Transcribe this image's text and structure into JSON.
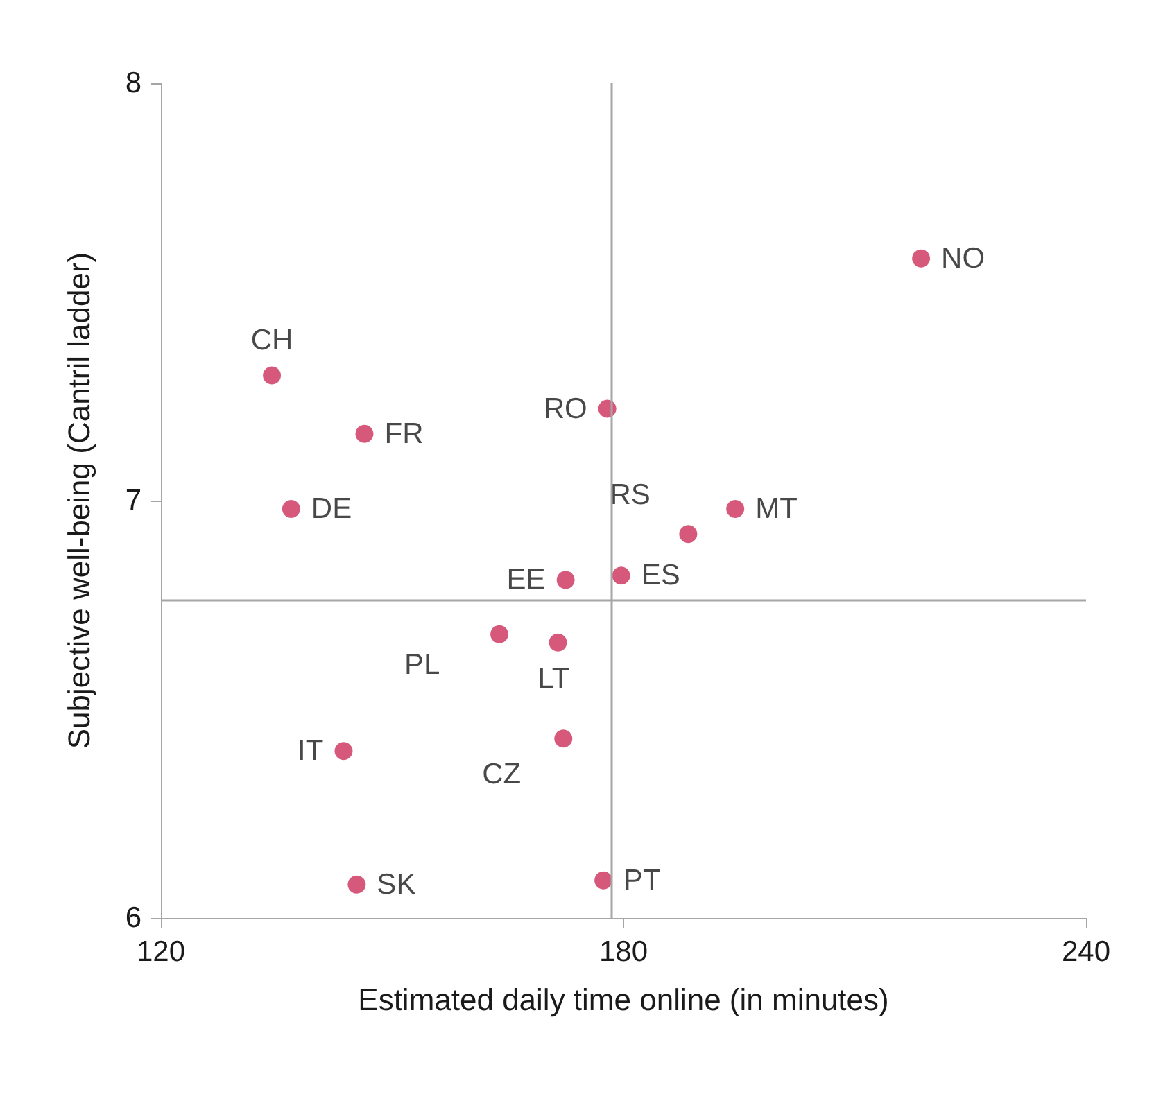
{
  "chart_data": {
    "type": "scatter",
    "xlabel": "Estimated daily time online (in minutes)",
    "ylabel": "Subjective well-being (Cantril ladder)",
    "xlim": [
      120,
      240
    ],
    "xticks": [
      120,
      180,
      240
    ],
    "ylim": [
      6,
      8
    ],
    "yticks": [
      6,
      7,
      8
    ],
    "grid": false,
    "legend": false,
    "marker": "circle",
    "ref_lines": [
      {
        "axis": "x",
        "value": 178.5,
        "color": "#a6a6a6"
      },
      {
        "axis": "y",
        "value": 6.76,
        "color": "#a6a6a6"
      }
    ],
    "series": [
      {
        "name": "CH",
        "color": "#cc2f5a",
        "x": [
          134.4
        ],
        "values": [
          7.3
        ]
      },
      {
        "name": "FR",
        "color": "#cc2f5a",
        "x": [
          146.4
        ],
        "values": [
          7.16
        ]
      },
      {
        "name": "DE",
        "color": "#cc2f5a",
        "x": [
          136.9
        ],
        "values": [
          6.98
        ]
      },
      {
        "name": "RO",
        "color": "#cc2f5a",
        "x": [
          177.9
        ],
        "values": [
          7.22
        ]
      },
      {
        "name": "NO",
        "color": "#cc2f5a",
        "x": [
          218.6
        ],
        "values": [
          7.58
        ]
      },
      {
        "name": "MT",
        "color": "#cc2f5a",
        "x": [
          194.5
        ],
        "values": [
          6.98
        ]
      },
      {
        "name": "RS",
        "color": "#cc2f5a",
        "x": [
          188.4
        ],
        "values": [
          6.92
        ]
      },
      {
        "name": "ES",
        "color": "#cc2f5a",
        "x": [
          179.7
        ],
        "values": [
          6.82
        ]
      },
      {
        "name": "EE",
        "color": "#cc2f5a",
        "x": [
          172.5
        ],
        "values": [
          6.81
        ]
      },
      {
        "name": "PL",
        "color": "#cc2f5a",
        "x": [
          163.9
        ],
        "values": [
          6.68
        ]
      },
      {
        "name": "LT",
        "color": "#cc2f5a",
        "x": [
          171.5
        ],
        "values": [
          6.66
        ]
      },
      {
        "name": "CZ",
        "color": "#cc2f5a",
        "x": [
          172.2
        ],
        "values": [
          6.43
        ]
      },
      {
        "name": "IT",
        "color": "#cc2f5a",
        "x": [
          143.7
        ],
        "values": [
          6.4
        ]
      },
      {
        "name": "SK",
        "color": "#cc2f5a",
        "x": [
          145.4
        ],
        "values": [
          6.08
        ]
      },
      {
        "name": "PT",
        "color": "#cc2f5a",
        "x": [
          177.4
        ],
        "values": [
          6.09
        ]
      }
    ]
  }
}
